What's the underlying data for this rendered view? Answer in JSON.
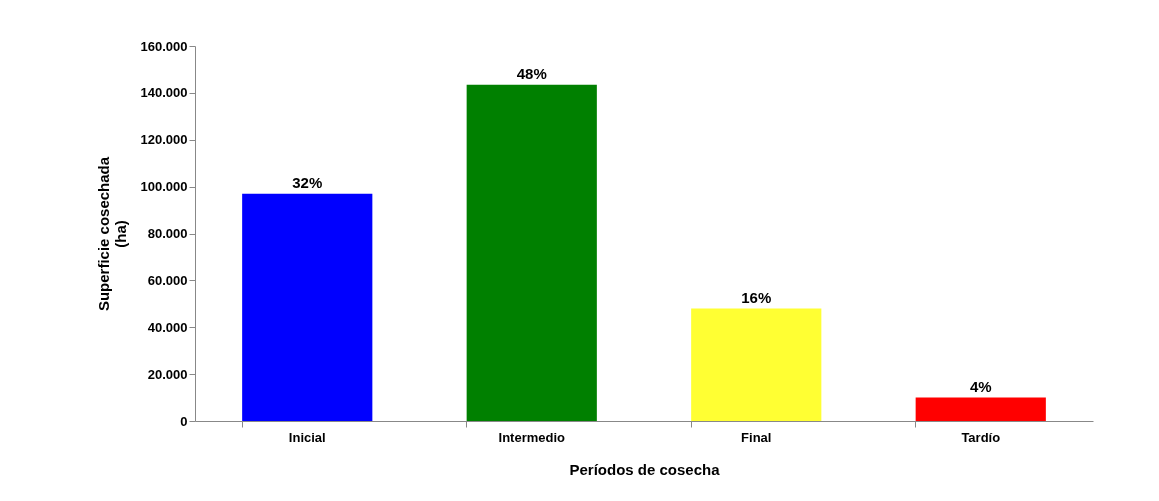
{
  "chart_data": {
    "type": "bar",
    "xlabel": "Períodos de cosecha",
    "ylabel": "Superficie cosechada\n(ha)",
    "categories": [
      "Inicial",
      "Intermedio",
      "Final",
      "Tardío"
    ],
    "values": [
      97000,
      143500,
      48000,
      10000
    ],
    "colors": [
      "#0000ff",
      "#008000",
      "#ffff33",
      "#ff0000"
    ],
    "annotations": [
      {
        "text": "32%",
        "x": "Inicial",
        "y": 97000
      },
      {
        "text": "48%",
        "x": "Intermedio",
        "y": 143500
      },
      {
        "text": "16%",
        "x": "Final",
        "y": 48000
      },
      {
        "text": "4%",
        "x": "Tardío",
        "y": 10000
      }
    ],
    "ylim": [
      0,
      160000
    ],
    "yticks": [
      {
        "value": 0,
        "label": "0"
      },
      {
        "value": 20000,
        "label": "20.000"
      },
      {
        "value": 40000,
        "label": "40.000"
      },
      {
        "value": 60000,
        "label": "60.000"
      },
      {
        "value": 80000,
        "label": "80.000"
      },
      {
        "value": 100000,
        "label": "100.000"
      },
      {
        "value": 120000,
        "label": "120.000"
      },
      {
        "value": 140000,
        "label": "140.000"
      },
      {
        "value": 160000,
        "label": "160.000"
      }
    ],
    "grid": false,
    "legend": false
  }
}
